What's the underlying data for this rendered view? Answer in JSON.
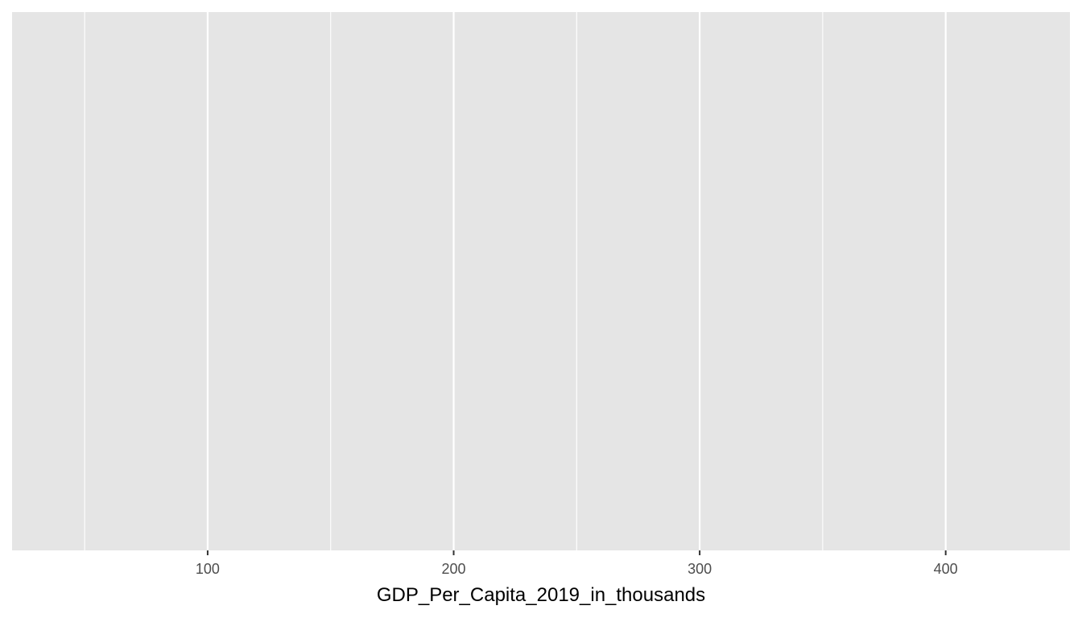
{
  "colors": {
    "panel_background": "#e5e5e5",
    "grid_line": "#ffffff",
    "tick_label": "#4d4d4d",
    "axis_title": "#000000"
  },
  "chart_data": {
    "type": "scatter",
    "title": "",
    "xlabel": "GDP_Per_Capita_2019_in_thousands",
    "ylabel": "",
    "xlim": [
      20.5,
      450.5
    ],
    "x_major_ticks": [
      100,
      200,
      300,
      400
    ],
    "x_tick_labels": [
      "100",
      "200",
      "300",
      "400"
    ],
    "x_minor_ticks": [
      50,
      150,
      250,
      350
    ],
    "y_ticks": [],
    "grid": true,
    "legend": "none",
    "series": []
  }
}
